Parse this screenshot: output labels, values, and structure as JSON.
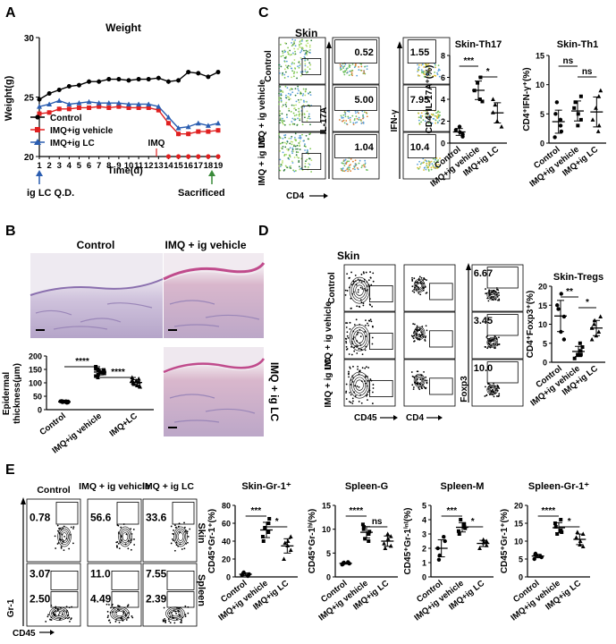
{
  "panels": {
    "A": {
      "letter": "A",
      "title": "Weight",
      "ylabel": "Weight(g)",
      "xlabel": "Time(d)",
      "yticks": [
        "20",
        "25",
        "30"
      ],
      "xticks": [
        "1",
        "2",
        "3",
        "4",
        "5",
        "6",
        "7",
        "8",
        "9",
        "10",
        "11",
        "12",
        "13",
        "14",
        "15",
        "16",
        "17",
        "18",
        "19"
      ],
      "legend": [
        "Control",
        "IMQ+ig vehicle",
        "IMQ+ig LC"
      ],
      "imq_label": "IMQ",
      "iglc_label": "ig LC Q.D.",
      "sacrificed_label": "Sacrificed"
    },
    "B": {
      "letter": "B",
      "control_label": "Control",
      "vehicle_label": "IMQ + ig vehicle",
      "lc_label": "IMQ + ig LC",
      "ylabel_1": "Epidermal",
      "ylabel_2": "thickness(μm)",
      "yticks": [
        "0",
        "50",
        "100",
        "150",
        "200"
      ],
      "groups": [
        "Control",
        "IMQ+ig vehicle",
        "IMQ+LC"
      ],
      "sig1": "****",
      "sig2": "****"
    },
    "C": {
      "letter": "C",
      "tissue": "Skin",
      "rows": [
        "Control",
        "IMQ + ig vehicle",
        "IMQ + ig LC"
      ],
      "il17_values": [
        "0.52",
        "5.00",
        "1.04"
      ],
      "ifng_values": [
        "1.55",
        "7.95",
        "10.4"
      ],
      "xaxis": "CD4",
      "yaxis_1": "IL-17A",
      "yaxis_2": "IFN-γ",
      "th17_title": "Skin-Th17",
      "th17_ylabel": "CD4⁺IL-17A⁺(%)",
      "th17_yticks": [
        "0",
        "2",
        "4",
        "6",
        "8"
      ],
      "th17_sig1": "***",
      "th17_sig2": "*",
      "th1_title": "Skin-Th1",
      "th1_ylabel": "CD4⁺IFN-γ⁺(%)",
      "th1_yticks": [
        "0",
        "5",
        "10",
        "15"
      ],
      "th1_sig1": "ns",
      "th1_sig2": "ns",
      "groups": [
        "Control",
        "IMQ+ig vehicle",
        "IMQ+ig LC"
      ]
    },
    "D": {
      "letter": "D",
      "tissue": "Skin",
      "rows": [
        "Control",
        "IMQ + ig vehicle",
        "IMQ + ig LC"
      ],
      "foxp3_values": [
        "6.67",
        "3.45",
        "10.0"
      ],
      "xaxis_1": "CD45",
      "xaxis_2": "CD4",
      "yaxis": "Foxp3",
      "treg_title": "Skin-Tregs",
      "treg_ylabel": "CD4⁺Foxp3⁺(%)",
      "treg_yticks": [
        "0",
        "5",
        "10",
        "15",
        "20"
      ],
      "sig1": "**",
      "sig2": "*",
      "groups": [
        "Control",
        "IMQ+ig vehicle",
        "IMQ+ig LC"
      ]
    },
    "E": {
      "letter": "E",
      "col_headers": [
        "Control",
        "IMQ + ig vehicle",
        "IMQ + ig LC"
      ],
      "row_labels": [
        "Skin",
        "Spleen"
      ],
      "skin_values": [
        "0.78",
        "56.6",
        "33.6"
      ],
      "spleen_top_values": [
        "3.07",
        "11.0",
        "7.55"
      ],
      "spleen_bottom_values": [
        "2.50",
        "4.49",
        "2.39"
      ],
      "yaxis": "Gr-1",
      "xaxis": "CD45",
      "groups": [
        "Control",
        "IMQ+ig vehicle",
        "IMQ+ig LC"
      ],
      "plots": [
        {
          "title": "Skin-Gr-1⁺",
          "ylabel": "CD45⁺Gr-1⁺(%)",
          "yticks": [
            "0",
            "20",
            "40",
            "60",
            "80"
          ],
          "sig1": "***",
          "sig2": "*"
        },
        {
          "title": "Spleen-G",
          "ylabel": "CD45⁺Gr-1ʰⁱ(%)",
          "yticks": [
            "0",
            "5",
            "10",
            "15"
          ],
          "sig1": "****",
          "sig2": "ns"
        },
        {
          "title": "Spleen-M",
          "ylabel": "CD45⁺Gr-1ⁱⁿᵗ(%)",
          "yticks": [
            "0",
            "1",
            "2",
            "3",
            "4",
            "5"
          ],
          "sig1": "***",
          "sig2": "*"
        },
        {
          "title": "Spleen-Gr-1⁺",
          "ylabel": "CD45⁺Gr-1⁺(%)",
          "yticks": [
            "0",
            "5",
            "10",
            "15",
            "20"
          ],
          "sig1": "****",
          "sig2": "*"
        }
      ]
    }
  },
  "chart_data": [
    {
      "type": "line",
      "title": "Weight",
      "xlabel": "Time(d)",
      "ylabel": "Weight(g)",
      "ylim": [
        20,
        30
      ],
      "x": [
        1,
        2,
        3,
        4,
        5,
        6,
        7,
        8,
        9,
        10,
        11,
        12,
        13,
        14,
        15,
        16,
        17,
        18,
        19
      ],
      "series": [
        {
          "name": "Control",
          "color": "#000000",
          "values": [
            24.8,
            25.3,
            25.6,
            25.9,
            26.0,
            26.3,
            26.3,
            26.5,
            26.5,
            26.4,
            26.5,
            26.5,
            26.6,
            26.3,
            26.4,
            27.1,
            27.0,
            26.7,
            27.1
          ]
        },
        {
          "name": "IMQ+ig vehicle",
          "color": "#e02020",
          "values": [
            23.6,
            23.7,
            24.0,
            24.0,
            24.1,
            24.1,
            24.2,
            24.1,
            24.2,
            24.1,
            24.1,
            24.1,
            23.9,
            22.8,
            21.9,
            21.9,
            22.1,
            22.1,
            22.2
          ]
        },
        {
          "name": "IMQ+ig LC",
          "color": "#2a5db0",
          "values": [
            24.2,
            24.4,
            24.7,
            24.4,
            24.5,
            24.6,
            24.5,
            24.5,
            24.5,
            24.4,
            24.4,
            24.4,
            24.2,
            23.3,
            22.4,
            22.5,
            22.8,
            22.6,
            22.8
          ]
        }
      ]
    },
    {
      "type": "scatter",
      "title": "",
      "ylabel": "Epidermal thickness(μm)",
      "ylim": [
        0,
        200
      ],
      "categories": [
        "Control",
        "IMQ+ig vehicle",
        "IMQ+LC"
      ],
      "values": [
        [
          30,
          28,
          27,
          31,
          29,
          26,
          30,
          32,
          28,
          29,
          27,
          31
        ],
        [
          150,
          140,
          135,
          160,
          125,
          145,
          138,
          152,
          130,
          142,
          148,
          120,
          136
        ],
        [
          110,
          95,
          100,
          85,
          120,
          105,
          90,
          115,
          98,
          108,
          88,
          102
        ]
      ]
    },
    {
      "type": "scatter",
      "title": "Skin-Th17",
      "ylabel": "CD4⁺IL-17A⁺(%)",
      "ylim": [
        0,
        8
      ],
      "categories": [
        "Control",
        "IMQ+ig vehicle",
        "IMQ+ig LC"
      ],
      "values": [
        [
          1.0,
          0.8,
          1.5,
          1.2,
          0.6
        ],
        [
          5.5,
          4.0,
          6.0,
          4.8,
          3.8
        ],
        [
          3.5,
          2.0,
          1.5,
          2.8,
          4.0
        ]
      ]
    },
    {
      "type": "scatter",
      "title": "Skin-Th1",
      "ylabel": "CD4⁺IFN-γ⁺(%)",
      "ylim": [
        0,
        15
      ],
      "categories": [
        "Control",
        "IMQ+ig vehicle",
        "IMQ+ig LC"
      ],
      "values": [
        [
          3,
          1,
          7,
          5,
          2,
          4
        ],
        [
          5,
          8,
          3,
          6,
          4,
          7
        ],
        [
          6,
          2,
          8,
          4,
          9,
          3
        ]
      ]
    },
    {
      "type": "scatter",
      "title": "Skin-Tregs",
      "ylabel": "CD4⁺Foxp3⁺(%)",
      "ylim": [
        0,
        20
      ],
      "categories": [
        "Control",
        "IMQ+ig vehicle",
        "IMQ+ig LC"
      ],
      "values": [
        [
          18,
          12,
          8,
          15,
          6,
          14
        ],
        [
          2,
          5,
          3,
          1,
          4,
          2
        ],
        [
          10,
          7,
          12,
          9,
          6,
          11,
          8
        ]
      ]
    },
    {
      "type": "scatter",
      "title": "Skin-Gr-1⁺",
      "ylabel": "CD45⁺Gr-1⁺(%)",
      "ylim": [
        0,
        80
      ],
      "categories": [
        "Control",
        "IMQ+ig vehicle",
        "IMQ+ig LC"
      ],
      "values": [
        [
          3,
          5,
          2,
          4,
          1
        ],
        [
          60,
          45,
          55,
          40,
          65,
          50
        ],
        [
          40,
          30,
          35,
          20,
          45,
          38
        ]
      ]
    },
    {
      "type": "scatter",
      "title": "Spleen-G",
      "ylabel": "CD45⁺Gr-1ʰⁱ(%)",
      "ylim": [
        0,
        15
      ],
      "categories": [
        "Control",
        "IMQ+ig vehicle",
        "IMQ+ig LC"
      ],
      "values": [
        [
          2.8,
          3.0,
          2.6,
          2.9,
          3.1,
          2.7
        ],
        [
          9,
          11,
          8,
          10,
          9.5,
          7.5,
          10.5
        ],
        [
          8,
          6.5,
          9,
          7,
          8.5,
          6
        ]
      ]
    },
    {
      "type": "scatter",
      "title": "Spleen-M",
      "ylabel": "CD45⁺Gr-1ⁱⁿᵗ(%)",
      "ylim": [
        0,
        5
      ],
      "categories": [
        "Control",
        "IMQ+ig vehicle",
        "IMQ+ig LC"
      ],
      "values": [
        [
          2.5,
          1.5,
          2.0,
          1.2,
          2.8
        ],
        [
          3.5,
          3.2,
          4.0,
          3.0,
          3.4,
          3.7
        ],
        [
          2.4,
          2.2,
          2.6,
          2.0,
          2.5
        ]
      ]
    },
    {
      "type": "scatter",
      "title": "Spleen-Gr-1⁺",
      "ylabel": "CD45⁺Gr-1⁺(%)",
      "ylim": [
        0,
        20
      ],
      "categories": [
        "Control",
        "IMQ+ig vehicle",
        "IMQ+ig LC"
      ],
      "values": [
        [
          5.5,
          6,
          5,
          6.5,
          5.8,
          6.2
        ],
        [
          13,
          15,
          12,
          14,
          12.5,
          16
        ],
        [
          10,
          12,
          9,
          11,
          8.5,
          12.5
        ]
      ]
    }
  ]
}
